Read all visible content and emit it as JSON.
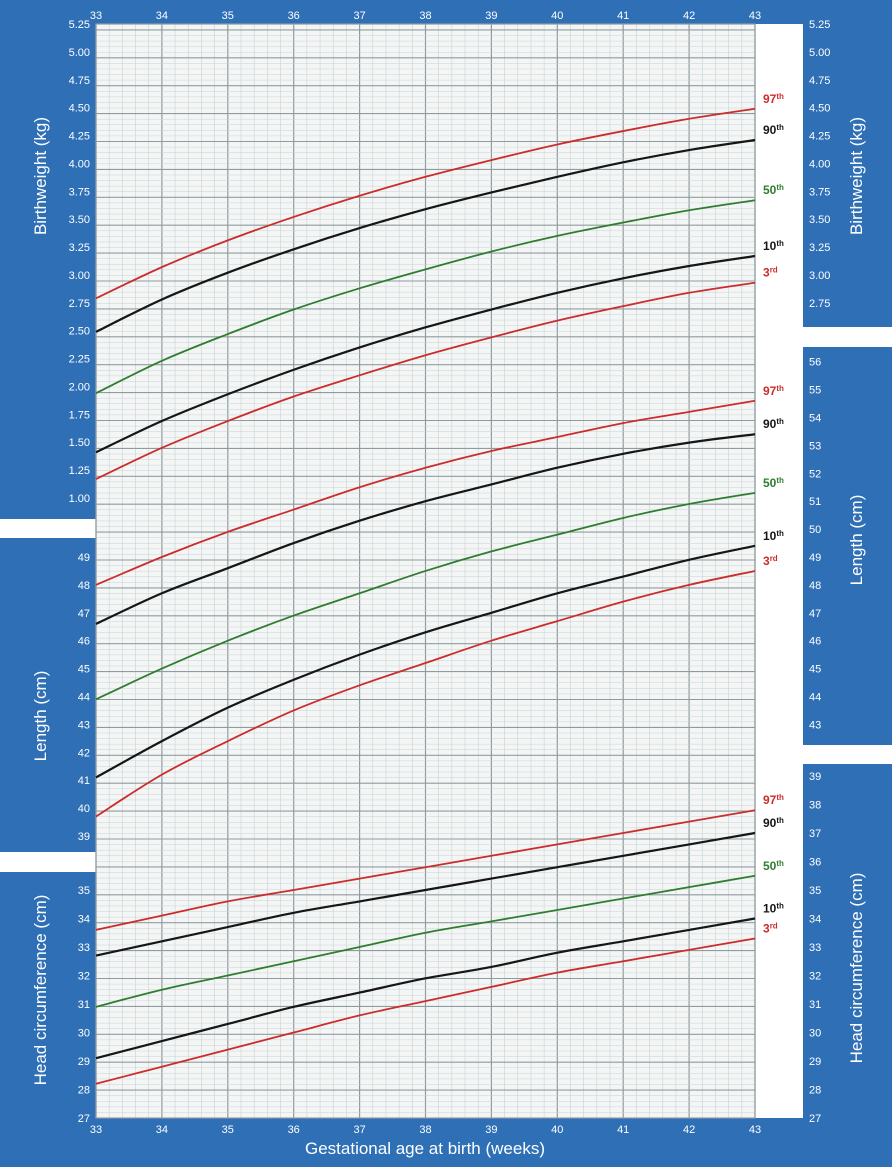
{
  "colors": {
    "panel_blue": "#2e6fb6",
    "grid_paper": "#f4f6f6",
    "grid_minor": "#c9d2d4",
    "grid_major": "#8f9c9f",
    "red": "#cc2c2c",
    "black": "#161616",
    "green": "#2f7d2f",
    "white": "#ffffff"
  },
  "xlabel": "Gestational age at birth (weeks)",
  "chart_data": {
    "type": "line",
    "x_ticks": [
      33,
      34,
      35,
      36,
      37,
      38,
      39,
      40,
      41,
      42,
      43
    ],
    "xlim": [
      33,
      43
    ],
    "x_minor_step": 0.2,
    "grid": true,
    "x_label": "Gestational age at birth (weeks)",
    "percentile_labels": [
      "97th",
      "90th",
      "50th",
      "10th",
      "3rd"
    ],
    "panels": [
      {
        "id": "birthweight",
        "ylabel": "Birthweight (kg)",
        "unit": "kg",
        "left_ticks": [
          "1.00",
          "1.25",
          "1.50",
          "1.75",
          "2.00",
          "2.25",
          "2.50",
          "2.75",
          "3.00",
          "3.25",
          "3.50",
          "3.75",
          "4.00",
          "4.25",
          "4.50",
          "4.75",
          "5.00",
          "5.25"
        ],
        "right_ticks": [
          "2.75",
          "3.00",
          "3.25",
          "3.50",
          "3.75",
          "4.00",
          "4.25",
          "4.50",
          "4.75",
          "5.00",
          "5.25"
        ],
        "series": [
          {
            "name": "97th",
            "color": "red",
            "x": [
              33,
              34,
              35,
              36,
              37,
              38,
              39,
              40,
              41,
              42,
              43
            ],
            "y": [
              2.79,
              3.07,
              3.31,
              3.52,
              3.71,
              3.88,
              4.03,
              4.17,
              4.29,
              4.4,
              4.49
            ]
          },
          {
            "name": "90th",
            "color": "black",
            "x": [
              33,
              34,
              35,
              36,
              37,
              38,
              39,
              40,
              41,
              42,
              43
            ],
            "y": [
              2.49,
              2.78,
              3.02,
              3.23,
              3.42,
              3.59,
              3.74,
              3.88,
              4.01,
              4.12,
              4.21
            ]
          },
          {
            "name": "50th",
            "color": "green",
            "x": [
              33,
              34,
              35,
              36,
              37,
              38,
              39,
              40,
              41,
              42,
              43
            ],
            "y": [
              1.94,
              2.23,
              2.47,
              2.69,
              2.88,
              3.05,
              3.21,
              3.35,
              3.47,
              3.58,
              3.67
            ]
          },
          {
            "name": "10th",
            "color": "black",
            "x": [
              33,
              34,
              35,
              36,
              37,
              38,
              39,
              40,
              41,
              42,
              43
            ],
            "y": [
              1.41,
              1.69,
              1.93,
              2.15,
              2.35,
              2.53,
              2.69,
              2.84,
              2.97,
              3.08,
              3.17
            ]
          },
          {
            "name": "3rd",
            "color": "red",
            "x": [
              33,
              34,
              35,
              36,
              37,
              38,
              39,
              40,
              41,
              42,
              43
            ],
            "y": [
              1.17,
              1.45,
              1.69,
              1.91,
              2.1,
              2.28,
              2.44,
              2.59,
              2.72,
              2.84,
              2.93
            ]
          }
        ]
      },
      {
        "id": "length",
        "ylabel": "Length (cm)",
        "unit": "cm",
        "left_ticks": [
          "39",
          "40",
          "41",
          "42",
          "43",
          "44",
          "45",
          "46",
          "47",
          "48",
          "49"
        ],
        "right_ticks": [
          "43",
          "44",
          "45",
          "46",
          "47",
          "48",
          "49",
          "50",
          "51",
          "52",
          "53",
          "54",
          "55",
          "56"
        ],
        "series": [
          {
            "name": "97th",
            "color": "red",
            "x": [
              33,
              34,
              35,
              36,
              37,
              38,
              39,
              40,
              41,
              42,
              43
            ],
            "y": [
              48.0,
              49.0,
              49.9,
              50.7,
              51.5,
              52.2,
              52.8,
              53.3,
              53.8,
              54.2,
              54.6
            ]
          },
          {
            "name": "90th",
            "color": "black",
            "x": [
              33,
              34,
              35,
              36,
              37,
              38,
              39,
              40,
              41,
              42,
              43
            ],
            "y": [
              46.6,
              47.7,
              48.6,
              49.5,
              50.3,
              51.0,
              51.6,
              52.2,
              52.7,
              53.1,
              53.4
            ]
          },
          {
            "name": "50th",
            "color": "green",
            "x": [
              33,
              34,
              35,
              36,
              37,
              38,
              39,
              40,
              41,
              42,
              43
            ],
            "y": [
              43.9,
              45.0,
              46.0,
              46.9,
              47.7,
              48.5,
              49.2,
              49.8,
              50.4,
              50.9,
              51.3
            ]
          },
          {
            "name": "10th",
            "color": "black",
            "x": [
              33,
              34,
              35,
              36,
              37,
              38,
              39,
              40,
              41,
              42,
              43
            ],
            "y": [
              41.1,
              42.4,
              43.6,
              44.6,
              45.5,
              46.3,
              47.0,
              47.7,
              48.3,
              48.9,
              49.4
            ]
          },
          {
            "name": "3rd",
            "color": "red",
            "x": [
              33,
              34,
              35,
              36,
              37,
              38,
              39,
              40,
              41,
              42,
              43
            ],
            "y": [
              39.7,
              41.2,
              42.4,
              43.5,
              44.4,
              45.2,
              46.0,
              46.7,
              47.4,
              48.0,
              48.5
            ]
          }
        ]
      },
      {
        "id": "head_circumference",
        "ylabel": "Head circumference (cm)",
        "unit": "cm",
        "left_ticks": [
          "27",
          "28",
          "29",
          "30",
          "31",
          "32",
          "33",
          "34",
          "35"
        ],
        "right_ticks": [
          "27",
          "28",
          "29",
          "30",
          "31",
          "32",
          "33",
          "34",
          "35",
          "36",
          "37",
          "38",
          "39"
        ],
        "series": [
          {
            "name": "97th",
            "color": "red",
            "x": [
              33,
              34,
              35,
              36,
              37,
              38,
              39,
              40,
              41,
              42,
              43
            ],
            "y": [
              33.6,
              34.1,
              34.6,
              35.0,
              35.4,
              35.8,
              36.2,
              36.6,
              37.0,
              37.4,
              37.8
            ]
          },
          {
            "name": "90th",
            "color": "black",
            "x": [
              33,
              34,
              35,
              36,
              37,
              38,
              39,
              40,
              41,
              42,
              43
            ],
            "y": [
              32.7,
              33.2,
              33.7,
              34.2,
              34.6,
              35.0,
              35.4,
              35.8,
              36.2,
              36.6,
              37.0
            ]
          },
          {
            "name": "50th",
            "color": "green",
            "x": [
              33,
              34,
              35,
              36,
              37,
              38,
              39,
              40,
              41,
              42,
              43
            ],
            "y": [
              30.9,
              31.5,
              32.0,
              32.5,
              33.0,
              33.5,
              33.9,
              34.3,
              34.7,
              35.1,
              35.5
            ]
          },
          {
            "name": "10th",
            "color": "black",
            "x": [
              33,
              34,
              35,
              36,
              37,
              38,
              39,
              40,
              41,
              42,
              43
            ],
            "y": [
              29.1,
              29.7,
              30.3,
              30.9,
              31.4,
              31.9,
              32.3,
              32.8,
              33.2,
              33.6,
              34.0
            ]
          },
          {
            "name": "3rd",
            "color": "red",
            "x": [
              33,
              34,
              35,
              36,
              37,
              38,
              39,
              40,
              41,
              42,
              43
            ],
            "y": [
              28.2,
              28.8,
              29.4,
              30.0,
              30.6,
              31.1,
              31.6,
              32.1,
              32.5,
              32.9,
              33.3
            ]
          }
        ]
      }
    ]
  }
}
